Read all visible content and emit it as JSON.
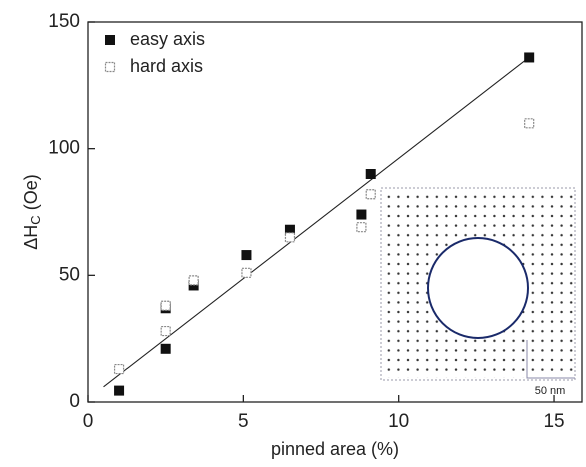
{
  "chart_data": {
    "type": "scatter",
    "x_label": "pinned area (%)",
    "y_label_parts": [
      "ΔH",
      "C",
      " (Oe)"
    ],
    "xlim": [
      0,
      15.9
    ],
    "xticks": [
      0,
      5,
      10,
      15
    ],
    "ylim": [
      0,
      150
    ],
    "yticks": [
      0,
      50,
      100,
      150
    ],
    "series": [
      {
        "name": "easy axis",
        "color": "#111111",
        "marker": "filled-square",
        "x": [
          1.0,
          2.5,
          2.5,
          3.4,
          5.1,
          6.5,
          8.8,
          9.1,
          14.2
        ],
        "values": [
          4.5,
          21,
          37,
          46,
          58,
          68,
          74,
          90,
          136
        ]
      },
      {
        "name": "hard axis",
        "color": "#888888",
        "marker": "open-square",
        "x": [
          1.0,
          2.5,
          2.5,
          3.4,
          5.1,
          6.5,
          8.8,
          9.1,
          14.2
        ],
        "values": [
          13,
          28,
          38,
          48,
          51,
          65,
          69,
          82,
          110
        ]
      }
    ],
    "fit_line": {
      "x": [
        0.5,
        14.3
      ],
      "values": [
        6,
        137
      ]
    },
    "inset_label": "50 nm"
  }
}
